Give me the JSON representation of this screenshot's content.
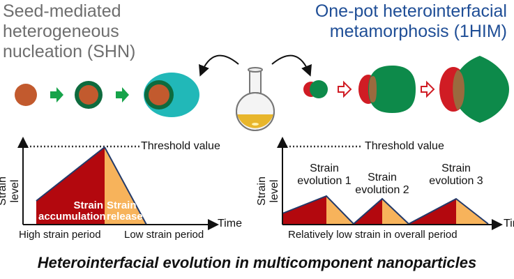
{
  "left_title": "Seed-mediated heterogeneous\nnucleation (SHN)",
  "right_title": "One-pot heterointerfacial\nmetamorphosis (1HIM)",
  "left_plot": {
    "ylabel": "Strain level",
    "xlabel": "Time",
    "threshold": "Threshold value",
    "accumulation": "Strain\naccumulation",
    "release": "Strain\nrelease",
    "period_high": "High strain period",
    "period_low": "Low strain period"
  },
  "right_plot": {
    "ylabel": "Strain level",
    "xlabel": "Time",
    "threshold": "Threshold value",
    "evolutions": [
      "Strain\nevolution 1",
      "Strain\nevolution 2",
      "Strain\nevolution 3"
    ],
    "period": "Relatively low strain in overall period"
  },
  "caption": "Heterointerfacial evolution in multicomponent nanoparticles",
  "colors": {
    "core": "#c25a2e",
    "green": "#0d8a4a",
    "cyan": "#21b8b8",
    "red": "#d01c24",
    "dark_red": "#a80f14",
    "orange": "#f7b35b",
    "navy": "#233a6a",
    "flask": "#e8b62c"
  }
}
